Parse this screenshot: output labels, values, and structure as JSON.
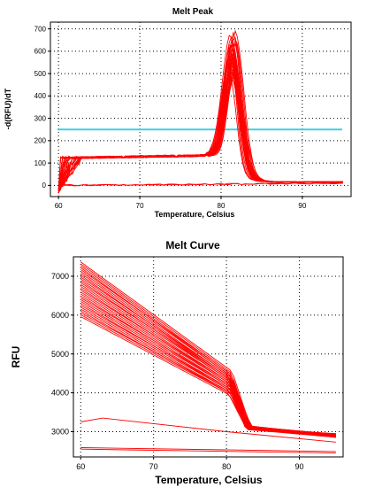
{
  "chart_data": [
    {
      "type": "line",
      "title": "Melt Peak",
      "xlabel": "Temperature, Celsius",
      "ylabel": "-d(RFU)/dT",
      "xlim": [
        59,
        96
      ],
      "ylim": [
        -50,
        730
      ],
      "xticks": [
        60,
        70,
        80,
        90
      ],
      "yticks": [
        0,
        100,
        200,
        300,
        400,
        500,
        600,
        700
      ],
      "grid": true,
      "line_color": "#ff0000",
      "threshold": {
        "value": 250,
        "color": "#40d0e0"
      },
      "series_groups": [
        {
          "kind": "peak",
          "count": 30,
          "baseline": 130,
          "rise": [
            60,
            63
          ],
          "peak_x": 81.5,
          "peak_y": [
            470,
            690
          ],
          "peak_width": 0.9,
          "tail": 15,
          "end": 95
        },
        {
          "kind": "flat",
          "count": 2,
          "x": [
            60,
            95
          ],
          "y": [
            0,
            10
          ]
        }
      ]
    },
    {
      "type": "line",
      "title": "Melt Curve",
      "xlabel": "Temperature, Celsius",
      "ylabel": "RFU",
      "xlim": [
        59,
        96
      ],
      "ylim": [
        2350,
        7500
      ],
      "xticks": [
        60,
        70,
        80,
        90
      ],
      "yticks": [
        3000,
        4000,
        5000,
        6000,
        7000
      ],
      "grid": true,
      "line_color": "#ff0000",
      "series_groups": [
        {
          "kind": "melt",
          "count": 30,
          "start_y": [
            5950,
            7350
          ],
          "drop_at": 80.5,
          "pre_drop_y": [
            3950,
            4550
          ],
          "post_y": [
            3050,
            3150
          ],
          "end_y": [
            2850,
            2950
          ],
          "end": 95
        },
        {
          "kind": "low",
          "count": 1,
          "points": [
            [
              60,
              3250
            ],
            [
              63,
              3350
            ],
            [
              80,
              3000
            ],
            [
              95,
              2730
            ]
          ]
        },
        {
          "kind": "low",
          "count": 2,
          "points": [
            [
              60,
              2550
            ],
            [
              95,
              2450
            ]
          ]
        }
      ]
    }
  ]
}
